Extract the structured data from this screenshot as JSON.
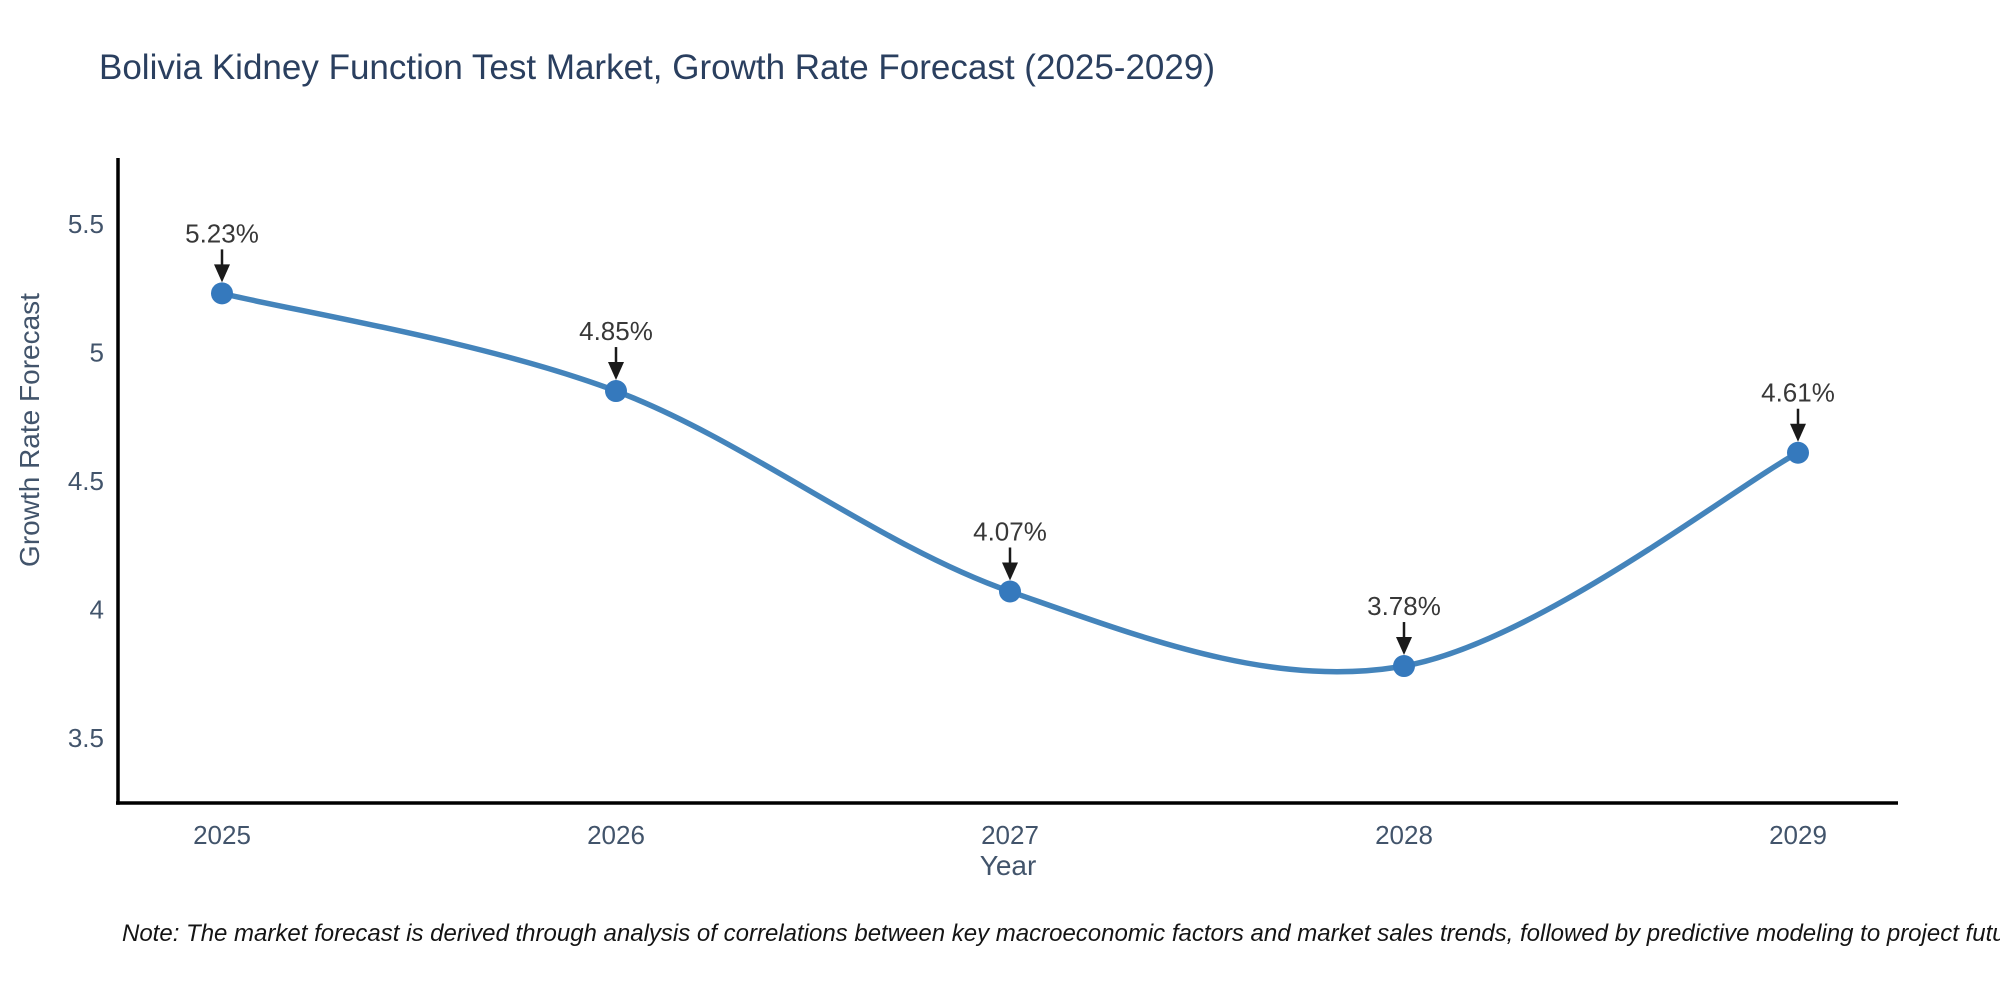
{
  "title": "Bolivia Kidney Function Test Market, Growth Rate Forecast (2025-2029)",
  "note": "Note: The market forecast is derived through analysis of correlations between key macroeconomic factors and market sales trends, followed by predictive modeling to project future sales",
  "chart_data": {
    "type": "line",
    "title": "Bolivia Kidney Function Test Market, Growth Rate Forecast (2025-2029)",
    "xlabel": "Year",
    "ylabel": "Growth Rate Forecast",
    "categories": [
      "2025",
      "2026",
      "2027",
      "2028",
      "2029"
    ],
    "series": [
      {
        "name": "Growth Rate Forecast",
        "values": [
          5.23,
          4.85,
          4.07,
          3.78,
          4.61
        ]
      }
    ],
    "point_labels": [
      "5.23%",
      "4.85%",
      "4.07%",
      "3.78%",
      "4.61%"
    ],
    "ytick_values": [
      5.5,
      5,
      4.5,
      4,
      3.5
    ],
    "ytick_labels": [
      "5.5",
      "5",
      "4.5",
      "4",
      "3.5"
    ],
    "ylim": [
      3.2,
      5.76
    ],
    "grid": false,
    "legend": false,
    "line_shape": "spline",
    "annotation_arrows": true,
    "colors": {
      "line": "#4484bb",
      "marker": "#3579bd",
      "axis": "#000000",
      "title": "#2a3f5f",
      "tick": "#42546b",
      "annotation": "#383838",
      "arrow": "#1a1a1a",
      "background": "#ffffff"
    }
  }
}
